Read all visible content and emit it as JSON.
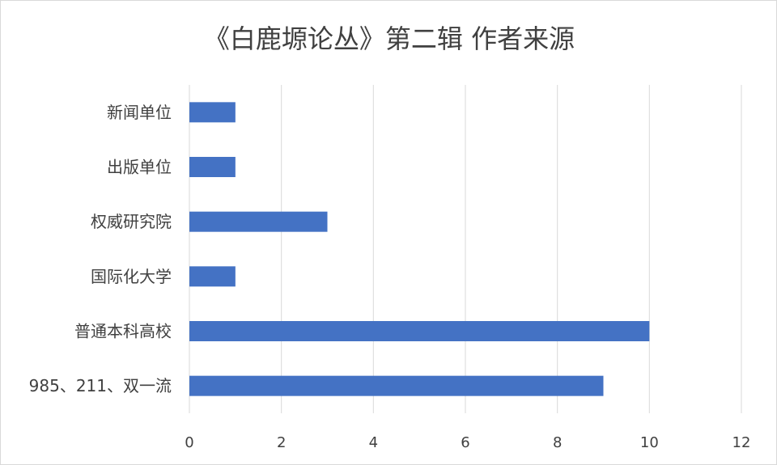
{
  "chart_data": {
    "type": "bar",
    "orientation": "horizontal",
    "title": "《白鹿塬论丛》第二辑 作者来源",
    "xlabel": "",
    "ylabel": "",
    "categories": [
      "985、211、双一流",
      "普通本科高校",
      "国际化大学",
      "权威研究院",
      "出版单位",
      "新闻单位"
    ],
    "values": [
      9,
      10,
      1,
      3,
      1,
      1
    ],
    "xlim": [
      0,
      12
    ],
    "ticks": [
      0,
      2,
      4,
      6,
      8,
      10,
      12
    ],
    "grid": true,
    "legend": "none",
    "bar_color": "#4472c4"
  }
}
